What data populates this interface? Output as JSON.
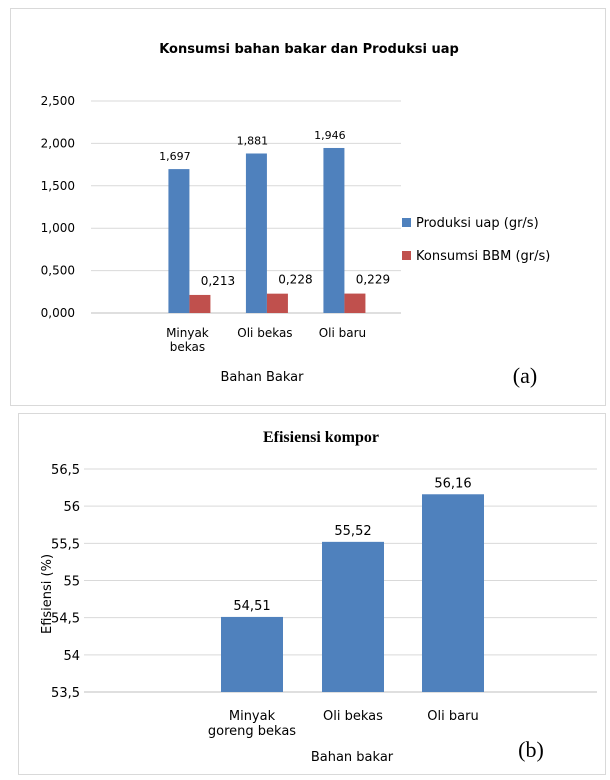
{
  "chart_data": [
    {
      "panel": "(a)",
      "type": "bar",
      "title": "Konsumsi bahan bakar dan Produksi uap",
      "xlabel": "Bahan Bakar",
      "ylabel": "",
      "categories": [
        [
          "Minyak",
          "bekas"
        ],
        [
          "Oli bekas"
        ],
        [
          "Oli baru"
        ]
      ],
      "series": [
        {
          "name": "Produksi uap (gr/s)",
          "values": [
            1.697,
            1.881,
            1.946
          ],
          "labels": [
            "1,697",
            "1,881",
            "1,946"
          ],
          "color": "#4f81bd"
        },
        {
          "name": "Konsumsi BBM (gr/s)",
          "values": [
            0.213,
            0.228,
            0.229
          ],
          "labels": [
            "0,213",
            "0,228",
            "0,229"
          ],
          "color": "#c0504d"
        }
      ],
      "ylim": [
        0,
        2.5
      ],
      "yticks": [
        0,
        0.5,
        1.0,
        1.5,
        2.0,
        2.5
      ],
      "ytick_labels": [
        "0,000",
        "0,500",
        "1,000",
        "1,500",
        "2,000",
        "2,500"
      ],
      "grid": true,
      "legend": "right"
    },
    {
      "panel": "(b)",
      "type": "bar",
      "title": "Efisiensi kompor",
      "xlabel": "Bahan bakar",
      "ylabel": "Efisiensi (%)",
      "categories": [
        [
          "Minyak",
          "goreng bekas"
        ],
        [
          "Oli bekas"
        ],
        [
          "Oli baru"
        ]
      ],
      "series": [
        {
          "values": [
            54.51,
            55.52,
            56.16
          ],
          "labels": [
            "54,51",
            "55,52",
            "56,16"
          ],
          "color": "#4f81bd"
        }
      ],
      "ylim": [
        53.5,
        56.5
      ],
      "yticks": [
        53.5,
        54,
        54.5,
        55,
        55.5,
        56,
        56.5
      ],
      "ytick_labels": [
        "53,5",
        "54",
        "54,5",
        "55",
        "55,5",
        "56",
        "56,5"
      ],
      "grid": true,
      "legend": "none"
    }
  ]
}
